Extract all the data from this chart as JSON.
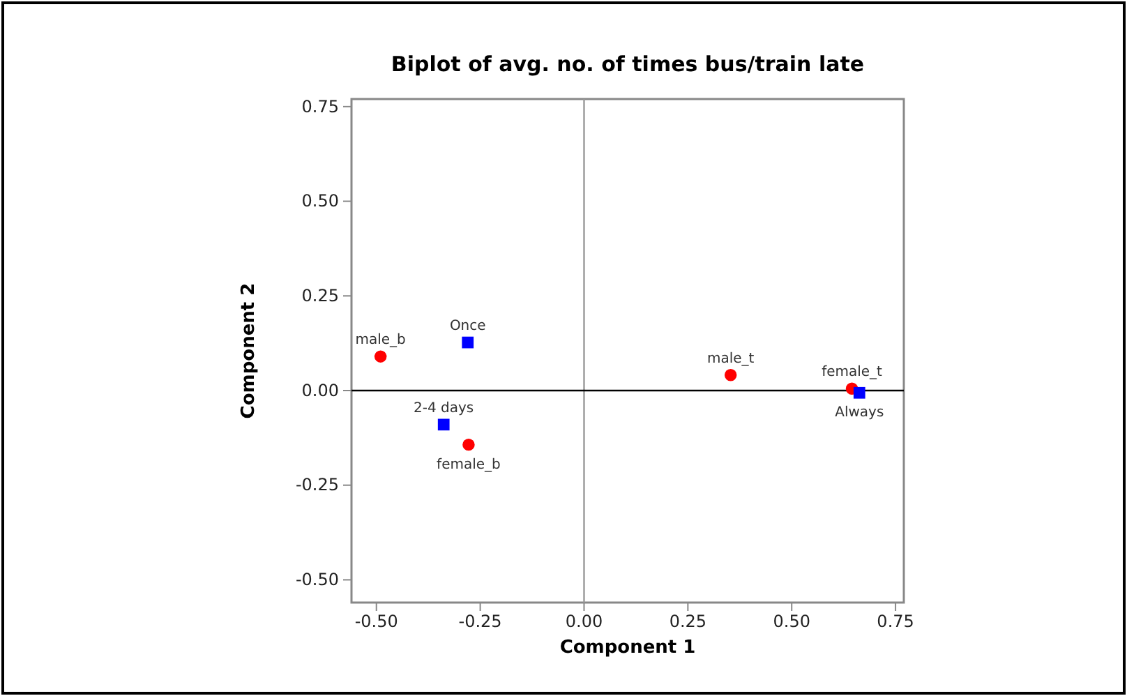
{
  "chart_data": {
    "type": "scatter",
    "title": "Biplot of avg. no. of times bus/train late",
    "xlabel": "Component 1",
    "ylabel": "Component 2",
    "xlim": [
      -0.56,
      0.77
    ],
    "ylim": [
      -0.56,
      0.77
    ],
    "xticks": [
      {
        "value": -0.5,
        "label": "-0.50"
      },
      {
        "value": -0.25,
        "label": "-0.25"
      },
      {
        "value": 0,
        "label": "0.00"
      },
      {
        "value": 0.25,
        "label": "0.25"
      },
      {
        "value": 0.5,
        "label": "0.50"
      },
      {
        "value": 0.75,
        "label": "0.75"
      }
    ],
    "yticks": [
      {
        "value": -0.5,
        "label": "-0.50"
      },
      {
        "value": -0.25,
        "label": "-0.25"
      },
      {
        "value": 0,
        "label": "0.00"
      },
      {
        "value": 0.25,
        "label": "0.25"
      },
      {
        "value": 0.5,
        "label": "0.50"
      },
      {
        "value": 0.75,
        "label": "0.75"
      }
    ],
    "series": [
      {
        "color": "#ff0000",
        "marker": "circle",
        "x": [
          -0.49,
          -0.278,
          0.353,
          0.645
        ],
        "values": [
          0.09,
          -0.143,
          0.041,
          0.005
        ]
      },
      {
        "color": "#0000ff",
        "marker": "square",
        "x": [
          -0.28,
          -0.338,
          0.663
        ],
        "values": [
          0.127,
          -0.09,
          -0.006
        ]
      }
    ],
    "annotations": [
      {
        "text": "male_b",
        "x": -0.49,
        "y": 0.09
      },
      {
        "text": "female_b",
        "x": -0.278,
        "y": -0.143
      },
      {
        "text": "male_t",
        "x": 0.353,
        "y": 0.041
      },
      {
        "text": "female_t",
        "x": 0.645,
        "y": 0.005
      },
      {
        "text": "Once",
        "x": -0.28,
        "y": 0.127
      },
      {
        "text": "2-4 days",
        "x": -0.338,
        "y": -0.09
      },
      {
        "text": "Always",
        "x": 0.663,
        "y": -0.006
      }
    ],
    "ref_lines": [
      {
        "axis": "x",
        "value": 0,
        "color": "#999999"
      },
      {
        "axis": "y",
        "value": 0,
        "color": "#000000"
      }
    ],
    "grid": false
  }
}
